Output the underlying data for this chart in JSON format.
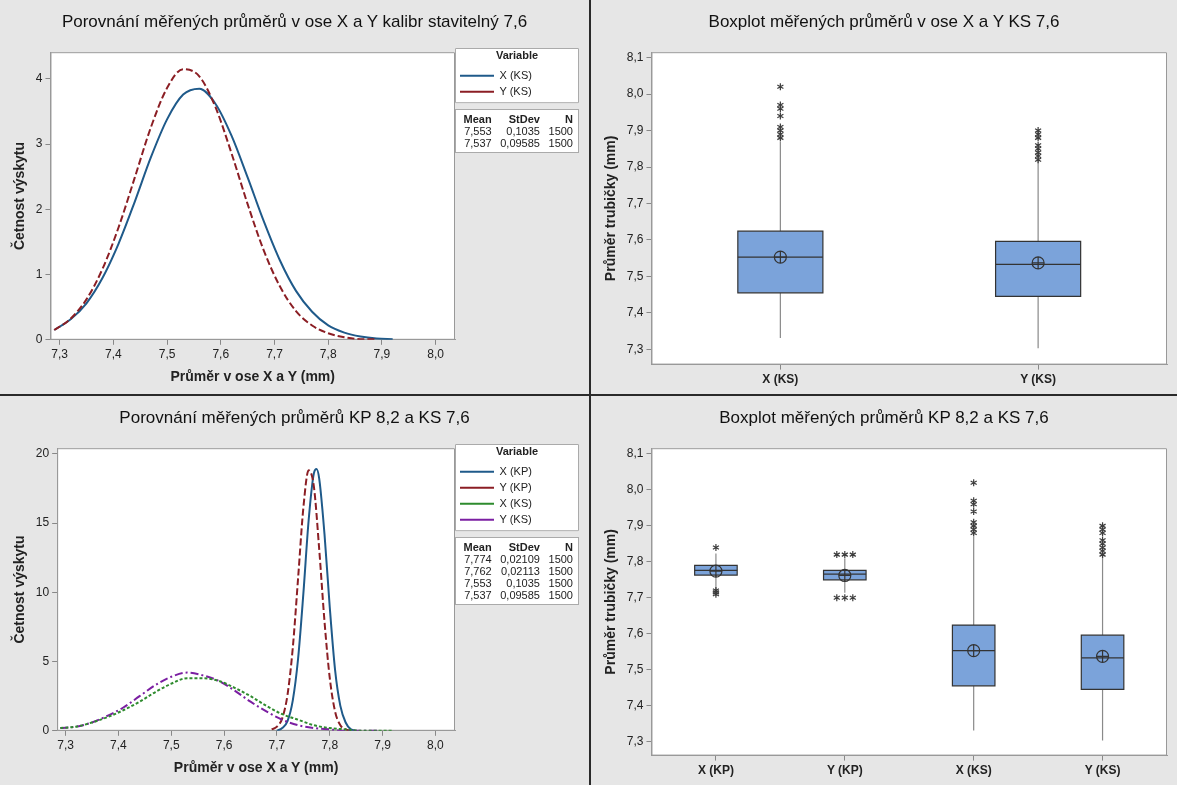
{
  "chart_data": [
    {
      "type": "line",
      "title": "Porovnání měřených průměrů v ose X a Y kalibr stavitelný 7,6",
      "xlabel": "Průměr v ose X a Y (mm)",
      "ylabel": "Četnost výskytu",
      "legend": "right",
      "legend_title": "Variable",
      "xlim": [
        7.283,
        8.036
      ],
      "ylim": [
        0,
        4.41
      ],
      "xticks": [
        {
          "value": 7.3,
          "label": "7,3"
        },
        {
          "value": 7.4,
          "label": "7,4"
        },
        {
          "value": 7.5,
          "label": "7,5"
        },
        {
          "value": 7.6,
          "label": "7,6"
        },
        {
          "value": 7.7,
          "label": "7,7"
        },
        {
          "value": 7.8,
          "label": "7,8"
        },
        {
          "value": 7.9,
          "label": "7,9"
        },
        {
          "value": 8.0,
          "label": "8,0"
        }
      ],
      "yticks": [
        0,
        1,
        2,
        3,
        4
      ],
      "series": [
        {
          "name": "X (KS)",
          "color": "#1f5a8a",
          "line_style": "solid",
          "x": [
            7.29,
            7.32,
            7.35,
            7.38,
            7.41,
            7.44,
            7.47,
            7.5,
            7.53,
            7.56,
            7.59,
            7.62,
            7.65,
            7.68,
            7.71,
            7.74,
            7.77,
            7.8,
            7.83,
            7.86,
            7.89,
            7.92
          ],
          "values": [
            0.15,
            0.31,
            0.56,
            0.95,
            1.48,
            2.12,
            2.8,
            3.38,
            3.76,
            3.85,
            3.62,
            3.13,
            2.49,
            1.82,
            1.22,
            0.75,
            0.43,
            0.22,
            0.11,
            0.05,
            0.02,
            0.01
          ]
        },
        {
          "name": "Y (KS)",
          "color": "#8b1e24",
          "line_style": "dashed",
          "x": [
            7.29,
            7.32,
            7.35,
            7.38,
            7.41,
            7.44,
            7.47,
            7.5,
            7.53,
            7.56,
            7.59,
            7.62,
            7.65,
            7.68,
            7.71,
            7.74,
            7.77,
            7.8,
            7.83,
            7.86,
            7.89
          ],
          "values": [
            0.15,
            0.32,
            0.62,
            1.09,
            1.73,
            2.49,
            3.26,
            3.86,
            4.15,
            4.04,
            3.57,
            2.86,
            2.08,
            1.37,
            0.82,
            0.44,
            0.22,
            0.1,
            0.04,
            0.01,
            0.01
          ]
        }
      ],
      "annotations": [
        "Mean",
        "StDev",
        "N",
        "7,553",
        "0,1035",
        "1500",
        "7,537",
        "0,09585",
        "1500"
      ]
    },
    {
      "type": "box",
      "title": "Boxplot měřených průměrů v ose X a Y KS 7,6",
      "ylabel": "Průměr trubičky (mm)",
      "color": "#7ba3da",
      "categories": [
        "X (KS)",
        "Y (KS)"
      ],
      "ylim": [
        7.258,
        8.115
      ],
      "yticks": [
        {
          "value": 7.3,
          "label": "7,3"
        },
        {
          "value": 7.4,
          "label": "7,4"
        },
        {
          "value": 7.5,
          "label": "7,5"
        },
        {
          "value": 7.6,
          "label": "7,6"
        },
        {
          "value": 7.7,
          "label": "7,7"
        },
        {
          "value": 7.8,
          "label": "7,8"
        },
        {
          "value": 7.9,
          "label": "7,9"
        },
        {
          "value": 8.0,
          "label": "8,0"
        },
        {
          "value": 8.1,
          "label": "8,1"
        }
      ],
      "boxes": [
        {
          "low": 7.331,
          "q1": 7.455,
          "median": 7.553,
          "q3": 7.624,
          "high": 7.87,
          "mean": 7.553,
          "outliers": [
            7.88,
            7.89,
            7.9,
            7.91,
            7.94,
            7.96,
            7.97,
            8.02
          ]
        },
        {
          "low": 7.303,
          "q1": 7.445,
          "median": 7.533,
          "q3": 7.596,
          "high": 7.82,
          "mean": 7.537,
          "outliers": [
            7.82,
            7.83,
            7.84,
            7.85,
            7.86,
            7.88,
            7.89,
            7.9
          ]
        }
      ]
    },
    {
      "type": "line",
      "title": "Porovnání měřených průměrů KP 8,2 a KS 7,6",
      "xlabel": "Průměr v ose X a Y (mm)",
      "ylabel": "Četnost výskytu",
      "legend": "right",
      "legend_title": "Variable",
      "xlim": [
        7.284,
        8.037
      ],
      "ylim": [
        0,
        20.4
      ],
      "xticks": [
        {
          "value": 7.3,
          "label": "7,3"
        },
        {
          "value": 7.4,
          "label": "7,4"
        },
        {
          "value": 7.5,
          "label": "7,5"
        },
        {
          "value": 7.6,
          "label": "7,6"
        },
        {
          "value": 7.7,
          "label": "7,7"
        },
        {
          "value": 7.8,
          "label": "7,8"
        },
        {
          "value": 7.9,
          "label": "7,9"
        },
        {
          "value": 8.0,
          "label": "8,0"
        }
      ],
      "yticks": [
        0,
        5,
        10,
        15,
        20
      ],
      "series": [
        {
          "name": "X (KP)",
          "color": "#1f5a8a",
          "line_style": "solid",
          "x": [
            7.7,
            7.71,
            7.72,
            7.73,
            7.74,
            7.75,
            7.76,
            7.77,
            7.775,
            7.78,
            7.79,
            7.8,
            7.81,
            7.82,
            7.83,
            7.84,
            7.85
          ],
          "values": [
            0.0,
            0.2,
            0.7,
            2.2,
            5.2,
            9.9,
            15.2,
            18.6,
            18.9,
            18.2,
            14.2,
            8.9,
            4.4,
            1.8,
            0.6,
            0.1,
            0.0
          ]
        },
        {
          "name": "Y (KP)",
          "color": "#8b1e24",
          "line_style": "dashed",
          "x": [
            7.69,
            7.7,
            7.71,
            7.72,
            7.73,
            7.74,
            7.75,
            7.76,
            7.77,
            7.78,
            7.79,
            7.8,
            7.81,
            7.82,
            7.83,
            7.84
          ],
          "values": [
            0.1,
            0.3,
            0.9,
            2.6,
            6.0,
            11.0,
            16.1,
            18.8,
            17.6,
            13.1,
            7.9,
            3.8,
            1.4,
            0.4,
            0.1,
            0.0
          ]
        },
        {
          "name": "X (KS)",
          "color": "#2e8b2e",
          "line_style": "dotted",
          "x": [
            7.29,
            7.32,
            7.35,
            7.38,
            7.41,
            7.44,
            7.47,
            7.5,
            7.53,
            7.56,
            7.59,
            7.62,
            7.65,
            7.68,
            7.71,
            7.74,
            7.77,
            7.8,
            7.83,
            7.86,
            7.89,
            7.92
          ],
          "values": [
            0.2,
            0.3,
            0.6,
            1.0,
            1.5,
            2.1,
            2.8,
            3.4,
            3.8,
            3.8,
            3.6,
            3.1,
            2.5,
            1.8,
            1.2,
            0.8,
            0.4,
            0.2,
            0.1,
            0.0,
            0.0,
            0.0
          ]
        },
        {
          "name": "Y (KS)",
          "color": "#7b1fa2",
          "line_style": "dashdot",
          "x": [
            7.29,
            7.32,
            7.35,
            7.38,
            7.41,
            7.44,
            7.47,
            7.5,
            7.53,
            7.56,
            7.59,
            7.62,
            7.65,
            7.68,
            7.71,
            7.74,
            7.77,
            7.8,
            7.83,
            7.86,
            7.89
          ],
          "values": [
            0.2,
            0.3,
            0.6,
            1.1,
            1.7,
            2.5,
            3.3,
            3.9,
            4.2,
            4.0,
            3.6,
            2.9,
            2.1,
            1.4,
            0.8,
            0.4,
            0.2,
            0.1,
            0.0,
            0.0,
            0.0
          ]
        }
      ],
      "annotations": [
        "Mean",
        "StDev",
        "N",
        "7,774",
        "0,02109",
        "1500",
        "7,762",
        "0,02113",
        "1500",
        "7,553",
        "0,1035",
        "1500",
        "7,537",
        "0,09585",
        "1500"
      ]
    },
    {
      "type": "box",
      "title": "Boxplot měřených průměrů KP 8,2 a KS 7,6",
      "ylabel": "Průměr trubičky (mm)",
      "color": "#7ba3da",
      "categories": [
        "X (KP)",
        "Y (KP)",
        "X (KS)",
        "Y (KS)"
      ],
      "ylim": [
        7.261,
        8.116
      ],
      "yticks": [
        {
          "value": 7.3,
          "label": "7,3"
        },
        {
          "value": 7.4,
          "label": "7,4"
        },
        {
          "value": 7.5,
          "label": "7,5"
        },
        {
          "value": 7.6,
          "label": "7,6"
        },
        {
          "value": 7.7,
          "label": "7,7"
        },
        {
          "value": 7.8,
          "label": "7,8"
        },
        {
          "value": 7.9,
          "label": "7,9"
        },
        {
          "value": 8.0,
          "label": "8,0"
        },
        {
          "value": 8.1,
          "label": "8,1"
        }
      ],
      "boxes": [
        {
          "low": 7.724,
          "q1": 7.763,
          "median": 7.776,
          "q3": 7.79,
          "high": 7.823,
          "mean": 7.774,
          "outliers": [
            7.84,
            7.71,
            7.715,
            7.72
          ]
        },
        {
          "low": 7.714,
          "q1": 7.75,
          "median": 7.766,
          "q3": 7.776,
          "high": 7.81,
          "mean": 7.762,
          "outliers": [
            7.82,
            7.82,
            7.82,
            7.7,
            7.7,
            7.7
          ]
        },
        {
          "low": 7.331,
          "q1": 7.455,
          "median": 7.553,
          "q3": 7.624,
          "high": 7.87,
          "mean": 7.553,
          "outliers": [
            7.88,
            7.89,
            7.9,
            7.91,
            7.94,
            7.96,
            7.97,
            8.02
          ]
        },
        {
          "low": 7.303,
          "q1": 7.445,
          "median": 7.533,
          "q3": 7.596,
          "high": 7.82,
          "mean": 7.537,
          "outliers": [
            7.82,
            7.83,
            7.84,
            7.85,
            7.86,
            7.88,
            7.89,
            7.9
          ]
        }
      ]
    }
  ]
}
